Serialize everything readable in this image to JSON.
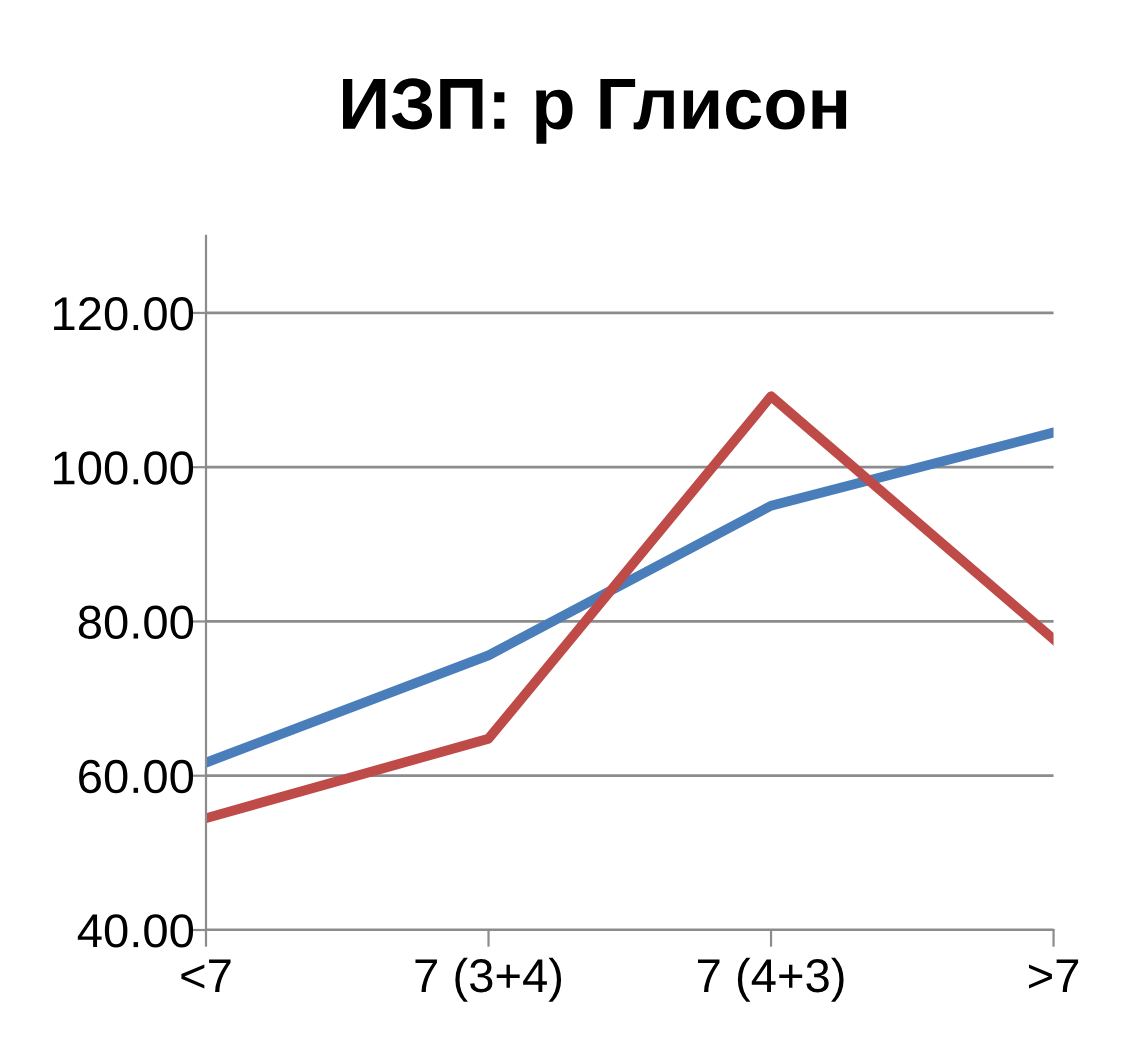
{
  "chart_data": {
    "type": "line",
    "title": "ИЗП: р Глисон",
    "categories": [
      "<7",
      "7 (3+4)",
      "7 (4+3)",
      ">7"
    ],
    "series": [
      {
        "color": "#4a7ebb",
        "values": [
          61.7,
          75.6,
          95.0,
          104.5
        ]
      },
      {
        "color": "#be4b48",
        "values": [
          54.5,
          64.8,
          109.2,
          77.7
        ]
      }
    ],
    "ylim": [
      40,
      130
    ],
    "yticks": [
      {
        "value": 40,
        "label": "40.00"
      },
      {
        "value": 60,
        "label": "60.00"
      },
      {
        "value": 80,
        "label": "80.00"
      },
      {
        "value": 100,
        "label": "100.00"
      },
      {
        "value": 120,
        "label": "120.00"
      }
    ],
    "grid": "y",
    "marker": "none",
    "line_style": "solid"
  }
}
